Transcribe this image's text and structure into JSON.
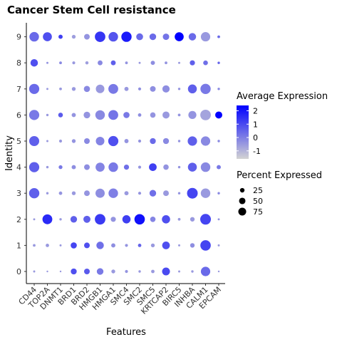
{
  "chart_data": {
    "type": "dot",
    "title": "Cancer Stem Cell resistance",
    "xlabel": "Features",
    "ylabel": "Identity",
    "features": [
      "CD44",
      "TOP2A",
      "DNMT1",
      "BRD1",
      "BRD2",
      "HMGB1",
      "HMGA1",
      "SMC4",
      "SMC2",
      "SMC5",
      "KRTCAP2",
      "BIRC5",
      "INHBA",
      "CALM1",
      "EPCAM"
    ],
    "identities": [
      "0",
      "1",
      "2",
      "3",
      "4",
      "5",
      "6",
      "7",
      "8",
      "9"
    ],
    "color_legend": {
      "title": "Average Expression",
      "ticks": [
        "2",
        "1",
        "0",
        "-1"
      ],
      "tick_values": [
        2,
        1,
        0,
        -1
      ],
      "range": [
        -1.6,
        2.4
      ],
      "low_color": "#d3d3d3",
      "high_color": "#0000ff"
    },
    "size_legend": {
      "title": "Percent Expressed",
      "ticks": [
        "25",
        "50",
        "75"
      ],
      "tick_values": [
        25,
        50,
        75
      ]
    },
    "rows": [
      {
        "identity": "9",
        "pct": [
          62,
          55,
          12,
          10,
          22,
          75,
          62,
          72,
          32,
          30,
          28,
          55,
          38,
          60,
          5
        ],
        "avg": [
          0.4,
          0.9,
          1.2,
          -0.6,
          -0.4,
          1.4,
          0.8,
          1.9,
          0.4,
          0.4,
          0.2,
          2.4,
          0.4,
          -0.5,
          0.4
        ]
      },
      {
        "identity": "8",
        "pct": [
          38,
          3,
          5,
          6,
          7,
          16,
          16,
          5,
          3,
          12,
          5,
          3,
          18,
          15,
          4
        ],
        "avg": [
          0.9,
          -0.4,
          -0.2,
          -0.5,
          -0.6,
          -0.2,
          0.6,
          -0.4,
          -0.5,
          -0.3,
          -0.4,
          -0.5,
          0.6,
          0.3,
          0.5
        ]
      },
      {
        "identity": "7",
        "pct": [
          70,
          3,
          5,
          10,
          26,
          50,
          66,
          12,
          6,
          22,
          36,
          4,
          54,
          72,
          4
        ],
        "avg": [
          0.4,
          -0.5,
          -0.5,
          -0.5,
          -0.2,
          -0.5,
          0.1,
          -0.5,
          -0.3,
          -0.3,
          -0.3,
          -0.4,
          0.6,
          0.1,
          -0.2
        ]
      },
      {
        "identity": "6",
        "pct": [
          70,
          4,
          15,
          12,
          30,
          62,
          66,
          26,
          8,
          20,
          34,
          5,
          44,
          76,
          34
        ],
        "avg": [
          0.1,
          -0.5,
          0.7,
          -0.4,
          -0.4,
          -0.2,
          0.2,
          0.1,
          -0.3,
          -0.4,
          -0.5,
          -0.4,
          -0.4,
          -0.7,
          2.4
        ]
      },
      {
        "identity": "5",
        "pct": [
          68,
          3,
          6,
          10,
          22,
          50,
          70,
          12,
          6,
          24,
          24,
          4,
          60,
          60,
          4
        ],
        "avg": [
          0.6,
          -0.5,
          -0.5,
          -0.4,
          -0.2,
          -0.1,
          0.9,
          -0.4,
          -0.4,
          0.4,
          -0.2,
          -0.4,
          0.6,
          -0.2,
          -0.2
        ]
      },
      {
        "identity": "4",
        "pct": [
          70,
          4,
          10,
          12,
          22,
          56,
          62,
          18,
          6,
          40,
          20,
          4,
          54,
          62,
          12
        ],
        "avg": [
          0.6,
          -0.5,
          0.1,
          -0.3,
          -0.3,
          -0.1,
          0.1,
          0.3,
          -0.4,
          1.2,
          -0.4,
          -0.4,
          0.6,
          -0.2,
          0.1
        ]
      },
      {
        "identity": "3",
        "pct": [
          72,
          4,
          8,
          10,
          22,
          58,
          62,
          12,
          6,
          30,
          22,
          4,
          78,
          62,
          4
        ],
        "avg": [
          0.6,
          -0.5,
          -0.4,
          -0.5,
          -0.4,
          -0.3,
          0.0,
          -0.5,
          -0.4,
          0.3,
          -0.5,
          -0.4,
          1.1,
          -0.5,
          -0.2
        ]
      },
      {
        "identity": "2",
        "pct": [
          3,
          66,
          4,
          30,
          34,
          76,
          18,
          46,
          74,
          20,
          46,
          5,
          14,
          78,
          3
        ],
        "avg": [
          -0.5,
          1.6,
          -0.5,
          0.6,
          0.6,
          1.3,
          -0.4,
          1.2,
          2.1,
          -0.1,
          0.9,
          -0.5,
          -0.5,
          1.1,
          -0.4
        ]
      },
      {
        "identity": "1",
        "pct": [
          5,
          8,
          3,
          26,
          22,
          38,
          12,
          6,
          8,
          10,
          40,
          3,
          14,
          74,
          3
        ],
        "avg": [
          -0.5,
          -0.5,
          -0.5,
          1.1,
          0.9,
          0.3,
          -0.3,
          -0.4,
          0.5,
          -0.5,
          0.9,
          -0.5,
          -0.3,
          1.1,
          -0.5
        ]
      },
      {
        "identity": "0",
        "pct": [
          3,
          2,
          2,
          24,
          22,
          30,
          10,
          6,
          4,
          8,
          42,
          3,
          4,
          60,
          2
        ],
        "avg": [
          -0.5,
          -0.5,
          -0.5,
          0.9,
          0.7,
          0.1,
          -0.5,
          -0.4,
          -0.5,
          -0.5,
          1.0,
          -0.5,
          -0.5,
          0.4,
          -0.5
        ]
      }
    ]
  }
}
